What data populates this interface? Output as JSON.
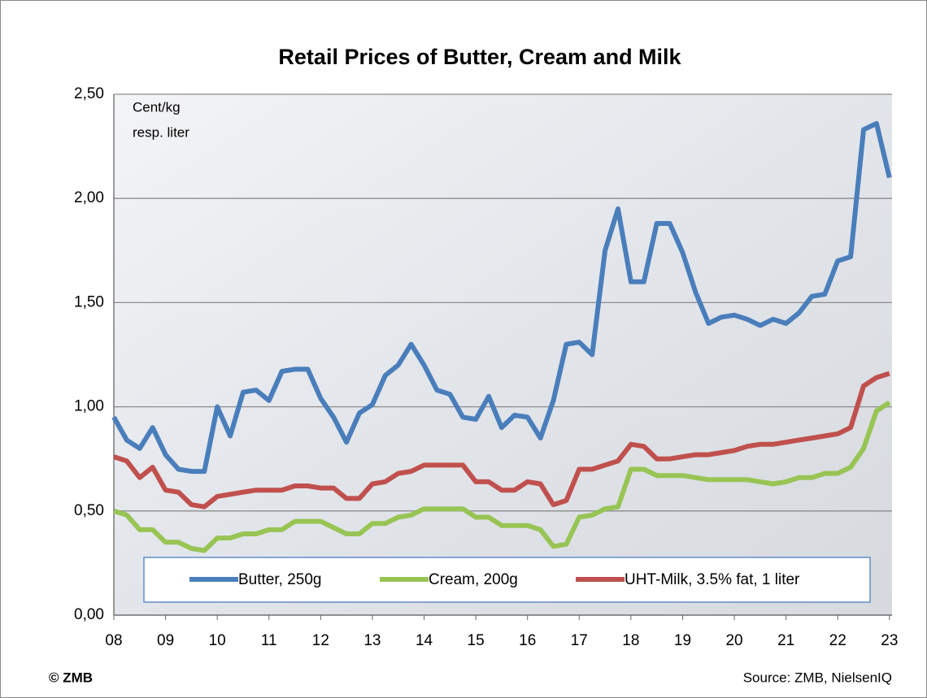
{
  "chart_data": {
    "type": "line",
    "title": "Retail Prices of Butter, Cream and Milk",
    "annotations": [
      "Cent/kg",
      "resp. liter"
    ],
    "copyright": "© ZMB",
    "source": "Source: ZMB, NielsenIQ",
    "x": [
      2008,
      2008.25,
      2008.5,
      2008.75,
      2009,
      2009.25,
      2009.5,
      2009.75,
      2010,
      2010.25,
      2010.5,
      2010.75,
      2011,
      2011.25,
      2011.5,
      2011.75,
      2012,
      2012.25,
      2012.5,
      2012.75,
      2013,
      2013.25,
      2013.5,
      2013.75,
      2014,
      2014.25,
      2014.5,
      2014.75,
      2015,
      2015.25,
      2015.5,
      2015.75,
      2016,
      2016.25,
      2016.5,
      2016.75,
      2017,
      2017.25,
      2017.5,
      2017.75,
      2018,
      2018.25,
      2018.5,
      2018.75,
      2019,
      2019.25,
      2019.5,
      2019.75,
      2020,
      2020.25,
      2020.5,
      2020.75,
      2021,
      2021.25,
      2021.5,
      2021.75,
      2022,
      2022.25,
      2022.5,
      2022.75,
      2023
    ],
    "series": [
      {
        "name": "Butter, 250g",
        "color": "#4a7ebb",
        "values": [
          0.95,
          0.84,
          0.8,
          0.9,
          0.77,
          0.7,
          0.69,
          0.69,
          1.0,
          0.86,
          1.07,
          1.08,
          1.03,
          1.17,
          1.18,
          1.18,
          1.04,
          0.95,
          0.83,
          0.97,
          1.01,
          1.15,
          1.2,
          1.3,
          1.2,
          1.08,
          1.06,
          0.95,
          0.94,
          1.05,
          0.9,
          0.96,
          0.95,
          0.85,
          1.03,
          1.3,
          1.31,
          1.25,
          1.75,
          1.95,
          1.6,
          1.6,
          1.88,
          1.88,
          1.74,
          1.55,
          1.4,
          1.43,
          1.44,
          1.42,
          1.39,
          1.42,
          1.4,
          1.45,
          1.53,
          1.54,
          1.7,
          1.72,
          2.33,
          2.36,
          2.1
        ]
      },
      {
        "name": "Cream, 200g",
        "color": "#98c454",
        "values": [
          0.5,
          0.48,
          0.41,
          0.41,
          0.35,
          0.35,
          0.32,
          0.31,
          0.37,
          0.37,
          0.39,
          0.39,
          0.41,
          0.41,
          0.45,
          0.45,
          0.45,
          0.42,
          0.39,
          0.39,
          0.44,
          0.44,
          0.47,
          0.48,
          0.51,
          0.51,
          0.51,
          0.51,
          0.47,
          0.47,
          0.43,
          0.43,
          0.43,
          0.41,
          0.33,
          0.34,
          0.47,
          0.48,
          0.51,
          0.52,
          0.7,
          0.7,
          0.67,
          0.67,
          0.67,
          0.66,
          0.65,
          0.65,
          0.65,
          0.65,
          0.64,
          0.63,
          0.64,
          0.66,
          0.66,
          0.68,
          0.68,
          0.71,
          0.8,
          0.98,
          1.02
        ]
      },
      {
        "name": "UHT-Milk, 3.5% fat, 1 liter",
        "color": "#c0504d",
        "values": [
          0.76,
          0.74,
          0.66,
          0.71,
          0.6,
          0.59,
          0.53,
          0.52,
          0.57,
          0.58,
          0.59,
          0.6,
          0.6,
          0.6,
          0.62,
          0.62,
          0.61,
          0.61,
          0.56,
          0.56,
          0.63,
          0.64,
          0.68,
          0.69,
          0.72,
          0.72,
          0.72,
          0.72,
          0.64,
          0.64,
          0.6,
          0.6,
          0.64,
          0.63,
          0.53,
          0.55,
          0.7,
          0.7,
          0.72,
          0.74,
          0.82,
          0.81,
          0.75,
          0.75,
          0.76,
          0.77,
          0.77,
          0.78,
          0.79,
          0.81,
          0.82,
          0.82,
          0.83,
          0.84,
          0.85,
          0.86,
          0.87,
          0.9,
          1.1,
          1.14,
          1.16
        ]
      }
    ],
    "xlim": [
      2008,
      2023.05
    ],
    "xticks": [
      {
        "value": 2008,
        "label": "08"
      },
      {
        "value": 2009,
        "label": "09"
      },
      {
        "value": 2010,
        "label": "10"
      },
      {
        "value": 2011,
        "label": "11"
      },
      {
        "value": 2012,
        "label": "12"
      },
      {
        "value": 2013,
        "label": "13"
      },
      {
        "value": 2014,
        "label": "14"
      },
      {
        "value": 2015,
        "label": "15"
      },
      {
        "value": 2016,
        "label": "16"
      },
      {
        "value": 2017,
        "label": "17"
      },
      {
        "value": 2018,
        "label": "18"
      },
      {
        "value": 2019,
        "label": "19"
      },
      {
        "value": 2020,
        "label": "20"
      },
      {
        "value": 2021,
        "label": "21"
      },
      {
        "value": 2022,
        "label": "22"
      },
      {
        "value": 2023,
        "label": "23"
      }
    ],
    "ylim": [
      0,
      2.5
    ],
    "yticks": [
      {
        "value": 0,
        "label": "0,00"
      },
      {
        "value": 0.5,
        "label": "0,50"
      },
      {
        "value": 1,
        "label": "1,00"
      },
      {
        "value": 1.5,
        "label": "1,50"
      },
      {
        "value": 2,
        "label": "2,00"
      },
      {
        "value": 2.5,
        "label": "2,50"
      }
    ],
    "grid": true,
    "legend": "bottom"
  }
}
